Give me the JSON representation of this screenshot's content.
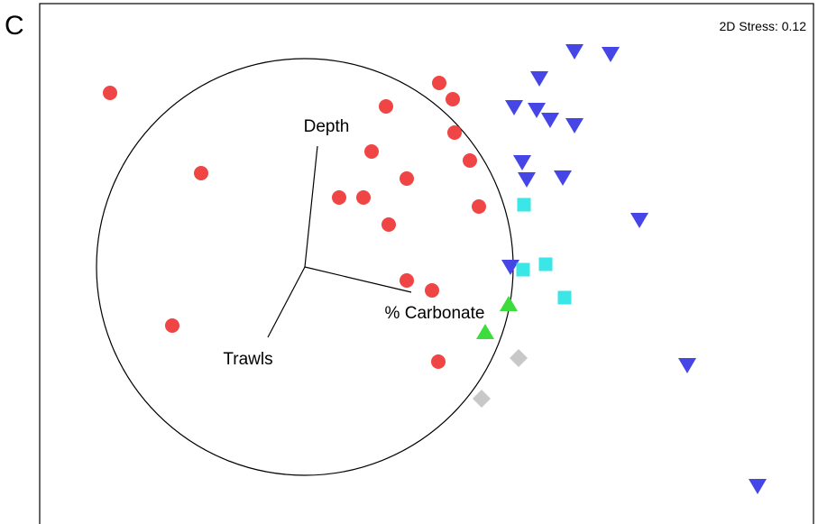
{
  "panel_label": "C",
  "chart_data": {
    "type": "scatter",
    "title": "",
    "xlabel": "",
    "ylabel": "",
    "stress_label": "2D Stress: 0.12",
    "grid": false,
    "legend": "none",
    "series": [
      {
        "marker": "circle",
        "color": "#f04545",
        "points": [
          [
            122,
            103
          ],
          [
            223,
            192
          ],
          [
            191,
            361
          ],
          [
            487,
            92
          ],
          [
            502,
            110
          ],
          [
            428,
            118
          ],
          [
            504,
            147
          ],
          [
            412,
            168
          ],
          [
            521,
            178
          ],
          [
            451,
            198
          ],
          [
            376,
            219
          ],
          [
            403,
            219
          ],
          [
            531,
            229
          ],
          [
            431,
            249
          ],
          [
            451,
            311
          ],
          [
            479,
            322
          ],
          [
            486,
            401
          ]
        ]
      },
      {
        "marker": "triangle-down",
        "color": "#4646e6",
        "points": [
          [
            637,
            57
          ],
          [
            677,
            60
          ],
          [
            598,
            87
          ],
          [
            570,
            119
          ],
          [
            595,
            122
          ],
          [
            610,
            133
          ],
          [
            637,
            139
          ],
          [
            579,
            180
          ],
          [
            584,
            199
          ],
          [
            624,
            197
          ],
          [
            709,
            244
          ],
          [
            566,
            296
          ],
          [
            762,
            405
          ],
          [
            840,
            539
          ]
        ]
      },
      {
        "marker": "square",
        "color": "#3ae6e6",
        "points": [
          [
            581,
            227
          ],
          [
            605,
            293
          ],
          [
            580,
            299
          ],
          [
            626,
            330
          ]
        ]
      },
      {
        "marker": "triangle-up",
        "color": "#3cdc3c",
        "points": [
          [
            564,
            337
          ],
          [
            538,
            368
          ]
        ]
      },
      {
        "marker": "diamond",
        "color": "#c8c8c8",
        "points": [
          [
            575,
            397
          ],
          [
            534,
            442
          ]
        ]
      }
    ],
    "vector_plot": {
      "origin": [
        338,
        296
      ],
      "circle_radius": 231,
      "vectors": [
        {
          "label": "Depth",
          "end": [
            352,
            162
          ]
        },
        {
          "label": "Trawls",
          "end": [
            297,
            374
          ]
        },
        {
          "label": "% Carbonate",
          "end": [
            456,
            324
          ]
        }
      ]
    }
  }
}
